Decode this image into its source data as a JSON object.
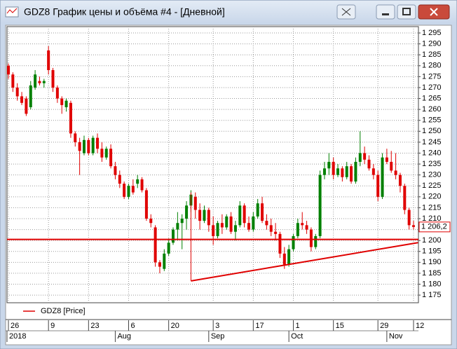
{
  "window": {
    "title": "GDZ8 График цены и объёма #4 - [Дневной]"
  },
  "chart_data": {
    "type": "candlestick",
    "categories": [
      "26",
      null,
      null,
      null,
      null,
      null,
      null,
      null,
      null,
      "9",
      null,
      null,
      null,
      null,
      null,
      null,
      null,
      null,
      "23",
      null,
      null,
      null,
      null,
      null,
      null,
      null,
      null,
      "6",
      null,
      null,
      null,
      null,
      null,
      null,
      null,
      null,
      "20",
      null,
      null,
      null,
      null,
      null,
      null,
      null,
      null,
      null,
      "3",
      null,
      null,
      null,
      null,
      null,
      null,
      null,
      null,
      "17",
      null,
      null,
      null,
      null,
      null,
      null,
      null,
      null,
      "1",
      null,
      null,
      null,
      null,
      null,
      null,
      null,
      null,
      "15",
      null,
      null,
      null,
      null,
      null,
      null,
      null,
      null,
      null,
      "29",
      null,
      null,
      null,
      null,
      null,
      null,
      null,
      "12"
    ],
    "month_labels": [
      "2018",
      null,
      null,
      null,
      null,
      null,
      null,
      null,
      null,
      null,
      null,
      null,
      null,
      null,
      null,
      null,
      null,
      null,
      null,
      null,
      null,
      null,
      null,
      null,
      "Aug",
      null,
      null,
      null,
      null,
      null,
      null,
      null,
      null,
      null,
      null,
      null,
      null,
      null,
      null,
      null,
      null,
      null,
      null,
      null,
      null,
      "Sep",
      null,
      null,
      null,
      null,
      null,
      null,
      null,
      null,
      null,
      null,
      null,
      null,
      null,
      null,
      null,
      null,
      null,
      "Oct",
      null,
      null,
      null,
      null,
      null,
      null,
      null,
      null,
      null,
      null,
      null,
      null,
      null,
      null,
      null,
      null,
      null,
      null,
      null,
      null,
      null,
      "Nov",
      null,
      null,
      null,
      null,
      null,
      null
    ],
    "open": [
      1280,
      1276,
      1270,
      1266,
      1265,
      1261,
      1270,
      1273,
      1272,
      1287,
      1278,
      1270,
      1265,
      1261,
      1263,
      1249,
      1245,
      1240,
      1246,
      1240,
      1247,
      1242,
      1238,
      1242,
      1234,
      1230,
      1226,
      1220,
      1225,
      1226,
      1228,
      1223,
      1210,
      1206,
      1190,
      1187,
      1194,
      1199,
      1205,
      1208,
      1210,
      1216,
      1220,
      1214,
      1209,
      1214,
      1207,
      1202,
      1208,
      1206,
      1211,
      1204,
      1207,
      1216,
      1208,
      1205,
      1211,
      1217,
      1209,
      1207,
      1204,
      1203,
      1194,
      1189,
      1196,
      1202,
      1208,
      1207,
      1205,
      1197,
      1202,
      1230,
      1233,
      1236,
      1230,
      1233,
      1229,
      1234,
      1227,
      1236,
      1240,
      1237,
      1233,
      1230,
      1220,
      1238,
      1236,
      1232,
      1230,
      1225,
      1214,
      1207
    ],
    "high": [
      1281,
      1277,
      1272,
      1268,
      1266,
      1273,
      1278,
      1275,
      1274,
      1289,
      1279,
      1271,
      1266,
      1265,
      1264,
      1250,
      1247,
      1248,
      1247,
      1248,
      1249,
      1245,
      1243,
      1244,
      1236,
      1232,
      1227,
      1226,
      1228,
      1230,
      1229,
      1224,
      1212,
      1207,
      1191,
      1196,
      1201,
      1206,
      1213,
      1212,
      1218,
      1223,
      1222,
      1217,
      1216,
      1215,
      1211,
      1209,
      1212,
      1212,
      1213,
      1209,
      1218,
      1217,
      1211,
      1213,
      1219,
      1220,
      1212,
      1210,
      1208,
      1204,
      1197,
      1198,
      1203,
      1210,
      1213,
      1209,
      1206,
      1203,
      1232,
      1236,
      1240,
      1238,
      1235,
      1234,
      1236,
      1235,
      1238,
      1250,
      1243,
      1239,
      1235,
      1232,
      1240,
      1242,
      1241,
      1240,
      1231,
      1226,
      1215,
      1209
    ],
    "low": [
      1274,
      1268,
      1264,
      1262,
      1257,
      1260,
      1269,
      1271,
      1270,
      1276,
      1268,
      1263,
      1258,
      1259,
      1247,
      1243,
      1230,
      1239,
      1239,
      1239,
      1240,
      1236,
      1237,
      1233,
      1228,
      1224,
      1219,
      1219,
      1221,
      1224,
      1222,
      1209,
      1206,
      1188,
      1185,
      1186,
      1193,
      1198,
      1200,
      1196,
      1205,
      1213,
      1210,
      1205,
      1208,
      1204,
      1198,
      1201,
      1203,
      1205,
      1203,
      1200,
      1206,
      1206,
      1204,
      1204,
      1210,
      1208,
      1205,
      1202,
      1200,
      1192,
      1187,
      1188,
      1195,
      1201,
      1205,
      1203,
      1195,
      1196,
      1201,
      1228,
      1230,
      1228,
      1229,
      1227,
      1228,
      1226,
      1226,
      1234,
      1235,
      1232,
      1228,
      1218,
      1219,
      1235,
      1231,
      1228,
      1222,
      1212,
      1205,
      1205
    ],
    "close": [
      1276,
      1270,
      1266,
      1263,
      1258,
      1271,
      1276,
      1272,
      1273,
      1278,
      1270,
      1265,
      1262,
      1264,
      1249,
      1245,
      1241,
      1246,
      1240,
      1247,
      1242,
      1238,
      1242,
      1234,
      1230,
      1226,
      1220,
      1225,
      1222,
      1228,
      1223,
      1210,
      1208,
      1190,
      1188,
      1194,
      1199,
      1205,
      1208,
      1210,
      1216,
      1221,
      1214,
      1209,
      1214,
      1207,
      1202,
      1208,
      1206,
      1211,
      1204,
      1207,
      1216,
      1208,
      1205,
      1211,
      1217,
      1209,
      1207,
      1204,
      1203,
      1194,
      1189,
      1196,
      1202,
      1208,
      1207,
      1205,
      1197,
      1202,
      1230,
      1233,
      1236,
      1230,
      1233,
      1229,
      1234,
      1227,
      1236,
      1240,
      1237,
      1233,
      1230,
      1220,
      1238,
      1236,
      1232,
      1230,
      1225,
      1214,
      1207,
      1206.2
    ],
    "up_color": "#008000",
    "down_color": "#e00000",
    "ylim": [
      1171.5,
      1297.9
    ],
    "yticks": [
      {
        "value": 1175,
        "label": "1 175"
      },
      {
        "value": 1180,
        "label": "1 180"
      },
      {
        "value": 1185,
        "label": "1 185"
      },
      {
        "value": 1190,
        "label": "1 190"
      },
      {
        "value": 1195,
        "label": "1 195"
      },
      {
        "value": 1200,
        "label": "1 200"
      },
      {
        "value": 1205,
        "label": "1 205"
      },
      {
        "value": 1210,
        "label": "1 210"
      },
      {
        "value": 1215,
        "label": "1 215"
      },
      {
        "value": 1220,
        "label": "1 220"
      },
      {
        "value": 1225,
        "label": "1 225"
      },
      {
        "value": 1230,
        "label": "1 230"
      },
      {
        "value": 1235,
        "label": "1 235"
      },
      {
        "value": 1240,
        "label": "1 240"
      },
      {
        "value": 1245,
        "label": "1 245"
      },
      {
        "value": 1250,
        "label": "1 250"
      },
      {
        "value": 1255,
        "label": "1 255"
      },
      {
        "value": 1260,
        "label": "1 260"
      },
      {
        "value": 1265,
        "label": "1 265"
      },
      {
        "value": 1270,
        "label": "1 270"
      },
      {
        "value": 1275,
        "label": "1 275"
      },
      {
        "value": 1280,
        "label": "1 280"
      },
      {
        "value": 1285,
        "label": "1 285"
      },
      {
        "value": 1290,
        "label": "1 290"
      },
      {
        "value": 1295,
        "label": "1 295"
      }
    ],
    "grid": true,
    "hline": {
      "value": 1200.5,
      "color": "#e00000"
    },
    "trendline": {
      "from": [
        41,
        1181.5
      ],
      "to": [
        92,
        1199
      ],
      "color": "#e00000"
    },
    "last_price": {
      "value": 1206.2,
      "label": "1 206,2",
      "color": "#e00000"
    },
    "legend": {
      "name": "GDZ8 [Price]",
      "color": "#e00000"
    }
  }
}
